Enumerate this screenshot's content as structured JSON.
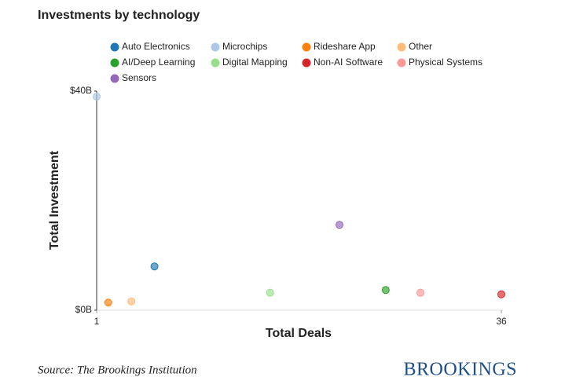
{
  "chart_data": {
    "type": "scatter",
    "title": "Investments by technology",
    "xlabel": "Total Deals",
    "ylabel": "Total Investment",
    "xlim": [
      1,
      36
    ],
    "xticks": [
      1,
      36
    ],
    "ylim": [
      0,
      40
    ],
    "yticks": [
      {
        "value": 0,
        "label": "$0B"
      },
      {
        "value": 40,
        "label": "$40B"
      }
    ],
    "series": [
      {
        "name": "Auto Electronics",
        "color": "#1f77b4",
        "x": [
          6
        ],
        "values": [
          8
        ]
      },
      {
        "name": "Microchips",
        "color": "#aec7e8",
        "x": [
          1
        ],
        "values": [
          39
        ]
      },
      {
        "name": "Rideshare App",
        "color": "#ff7f0e",
        "x": [
          2
        ],
        "values": [
          1.4
        ]
      },
      {
        "name": "Other",
        "color": "#ffbb78",
        "x": [
          4
        ],
        "values": [
          1.6
        ]
      },
      {
        "name": "AI/Deep Learning",
        "color": "#2ca02c",
        "x": [
          26
        ],
        "values": [
          3.7
        ]
      },
      {
        "name": "Digital Mapping",
        "color": "#98df8a",
        "x": [
          16
        ],
        "values": [
          3.2
        ]
      },
      {
        "name": "Non-AI Software",
        "color": "#d62728",
        "x": [
          36
        ],
        "values": [
          2.9
        ]
      },
      {
        "name": "Physical Systems",
        "color": "#ff9896",
        "x": [
          29
        ],
        "values": [
          3.2
        ]
      },
      {
        "name": "Sensors",
        "color": "#9467bd",
        "x": [
          22
        ],
        "values": [
          15.6
        ]
      }
    ],
    "source": "Source: The Brookings Institution",
    "logo": "BROOKINGS"
  }
}
